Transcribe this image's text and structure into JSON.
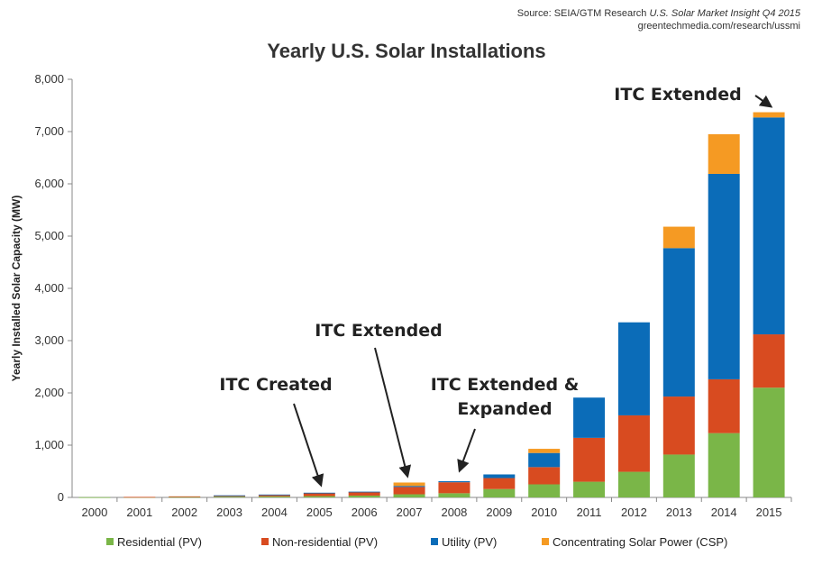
{
  "source": {
    "prefix": "Source: SEIA/GTM Research",
    "italic": "U.S. Solar Market Insight Q4 2015",
    "url": "greentechmedia.com/research/ussmi"
  },
  "chart_data": {
    "type": "bar",
    "stacked": true,
    "title": "Yearly U.S. Solar Installations",
    "xlabel": "",
    "ylabel": "Yearly Installed Solar Capacity (MW)",
    "ylim": [
      0,
      8000
    ],
    "yticks": [
      0,
      1000,
      2000,
      3000,
      4000,
      5000,
      6000,
      7000,
      8000
    ],
    "ytick_labels": [
      "0",
      "1,000",
      "2,000",
      "3,000",
      "4,000",
      "5,000",
      "6,000",
      "7,000",
      "8,000"
    ],
    "categories": [
      "2000",
      "2001",
      "2002",
      "2003",
      "2004",
      "2005",
      "2006",
      "2007",
      "2008",
      "2009",
      "2010",
      "2011",
      "2012",
      "2013",
      "2014",
      "2015"
    ],
    "series": [
      {
        "name": "Residential (PV)",
        "color": "#7ab648",
        "values": [
          4,
          7,
          10,
          15,
          20,
          25,
          35,
          60,
          80,
          160,
          250,
          300,
          490,
          820,
          1230,
          2100
        ]
      },
      {
        "name": "Non-residential (PV)",
        "color": "#d84b20",
        "values": [
          0,
          3,
          10,
          20,
          30,
          55,
          70,
          140,
          210,
          210,
          330,
          840,
          1080,
          1110,
          1030,
          1020
        ]
      },
      {
        "name": "Utility (PV)",
        "color": "#0b6cb8",
        "values": [
          0,
          0,
          0,
          5,
          5,
          10,
          5,
          20,
          20,
          70,
          270,
          770,
          1780,
          2840,
          3930,
          4150
        ]
      },
      {
        "name": "Concentrating Solar Power (CSP)",
        "color": "#f59a23",
        "values": [
          0,
          0,
          0,
          0,
          0,
          0,
          0,
          65,
          0,
          0,
          80,
          0,
          0,
          410,
          760,
          100
        ]
      }
    ],
    "annotations": [
      {
        "lines": [
          "ITC Created"
        ],
        "target": "2005"
      },
      {
        "lines": [
          "ITC Extended"
        ],
        "target": "2007"
      },
      {
        "lines": [
          "ITC Extended &",
          "Expanded"
        ],
        "target": "2008"
      },
      {
        "lines": [
          "ITC Extended"
        ],
        "target": "2015"
      }
    ],
    "grid": false,
    "legend": "bottom"
  }
}
